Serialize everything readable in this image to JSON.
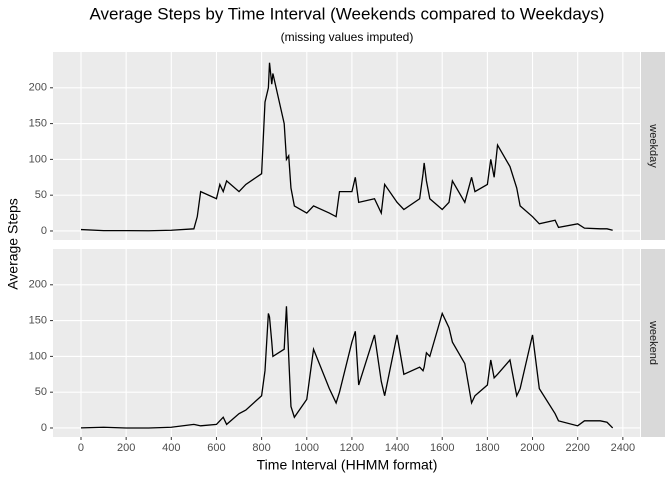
{
  "chart_data": {
    "type": "line",
    "title": "Average Steps by Time Interval (Weekends compared to Weekdays)",
    "subtitle": "(missing values imputed)",
    "x_label": "Time Interval (HHMM format)",
    "y_label": "Average Steps",
    "facets": true,
    "grid": true,
    "x": [
      0,
      100,
      200,
      300,
      400,
      500,
      515,
      530,
      600,
      615,
      630,
      645,
      700,
      730,
      800,
      815,
      830,
      835,
      845,
      850,
      900,
      910,
      920,
      930,
      945,
      1000,
      1030,
      1100,
      1130,
      1145,
      1200,
      1215,
      1230,
      1300,
      1330,
      1345,
      1400,
      1430,
      1500,
      1515,
      1520,
      1530,
      1545,
      1600,
      1630,
      1645,
      1700,
      1730,
      1745,
      1800,
      1815,
      1830,
      1845,
      1900,
      1930,
      1945,
      2000,
      2030,
      2100,
      2115,
      2200,
      2230,
      2300,
      2330,
      2355
    ],
    "series": [
      {
        "name": "weekday",
        "color": "#000000",
        "values": [
          2,
          0.5,
          0.5,
          0.3,
          1,
          3,
          20,
          55,
          45,
          65,
          55,
          70,
          55,
          65,
          80,
          180,
          200,
          235,
          205,
          220,
          150,
          100,
          105,
          60,
          35,
          25,
          35,
          25,
          20,
          55,
          55,
          75,
          40,
          45,
          25,
          65,
          40,
          30,
          45,
          80,
          95,
          70,
          45,
          30,
          40,
          70,
          40,
          75,
          55,
          65,
          100,
          75,
          120,
          90,
          60,
          35,
          20,
          10,
          15,
          5,
          10,
          4,
          3,
          3,
          1
        ]
      },
      {
        "name": "weekend",
        "color": "#000000",
        "values": [
          0.2,
          1,
          0,
          0,
          1,
          5,
          4,
          3,
          5,
          10,
          15,
          5,
          20,
          25,
          45,
          80,
          160,
          155,
          120,
          100,
          110,
          170,
          100,
          30,
          15,
          40,
          110,
          55,
          35,
          50,
          120,
          135,
          60,
          130,
          65,
          45,
          130,
          75,
          85,
          80,
          85,
          105,
          100,
          160,
          140,
          120,
          90,
          35,
          45,
          60,
          95,
          70,
          75,
          95,
          45,
          55,
          130,
          55,
          20,
          10,
          3,
          10,
          10,
          8,
          0
        ]
      }
    ],
    "xlim": [
      -124,
      2476
    ],
    "xticks": [
      0,
      200,
      400,
      600,
      800,
      1000,
      1200,
      1400,
      1600,
      1800,
      2000,
      2200,
      2400
    ],
    "ylim": [
      -12.6,
      250
    ],
    "yticks": [
      0,
      50,
      100,
      150,
      200
    ]
  }
}
